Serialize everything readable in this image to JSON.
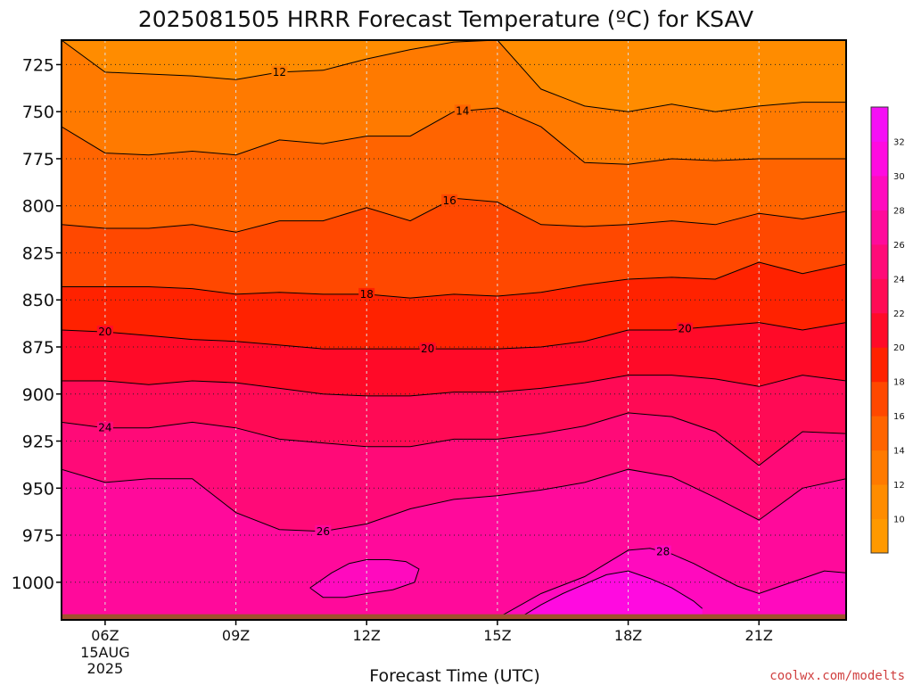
{
  "chart_data": {
    "type": "heatmap",
    "title": "2025081505 HRRR Forecast Temperature (ºC) for KSAV",
    "xlabel": "Forecast Time (UTC)",
    "ylabel": "",
    "credit": "coolwx.com/modelts",
    "x_range_hours_utc": [
      5,
      23
    ],
    "y_range_hpa": [
      712,
      1020
    ],
    "y_inverted": true,
    "y_ticks": [
      725,
      750,
      775,
      800,
      825,
      850,
      875,
      900,
      925,
      950,
      975,
      1000
    ],
    "y_tick_labels": [
      "725",
      "750",
      "775",
      "800",
      "825",
      "850",
      "875",
      "900",
      "925",
      "950",
      "975",
      "1000"
    ],
    "x_ticks": [
      6,
      9,
      12,
      15,
      18,
      21
    ],
    "x_tick_labels": [
      "06Z",
      "09Z",
      "12Z",
      "15Z",
      "18Z",
      "21Z"
    ],
    "x_date_label": [
      "15AUG",
      "2025"
    ],
    "grid": "dotted",
    "colorbar": {
      "position": "right",
      "min": 8,
      "max": 34,
      "step": 2,
      "tick_labels": [
        "10",
        "12",
        "14",
        "16",
        "18",
        "20",
        "22",
        "24",
        "26",
        "28",
        "30",
        "32"
      ],
      "colors": [
        "#ff9900",
        "#ff8c00",
        "#ff7a00",
        "#ff6400",
        "#ff4800",
        "#ff2200",
        "#ff0a28",
        "#ff0a55",
        "#ff0a78",
        "#ff0a9b",
        "#ff0abe",
        "#ff0ae0",
        "#f50ff5"
      ]
    },
    "contours": [
      {
        "level": 12,
        "label": "12",
        "hours": [
          5,
          6,
          7,
          8,
          9,
          10,
          11,
          12,
          13,
          14,
          15,
          16,
          17,
          18,
          19,
          20,
          21,
          22,
          23
        ],
        "pressure": [
          712,
          729,
          730,
          731,
          733,
          729,
          728,
          722,
          717,
          713,
          712,
          738,
          747,
          750,
          746,
          750,
          747,
          745,
          745
        ]
      },
      {
        "level": 14,
        "label": "14",
        "hours": [
          5,
          6,
          7,
          8,
          9,
          10,
          11,
          12,
          13,
          14,
          15,
          16,
          17,
          18,
          19,
          20,
          21,
          22,
          23
        ],
        "pressure": [
          758,
          772,
          773,
          771,
          773,
          765,
          767,
          763,
          763,
          750,
          748,
          758,
          777,
          778,
          775,
          776,
          775,
          775,
          775
        ]
      },
      {
        "level": 16,
        "label": "16",
        "hours": [
          5,
          6,
          7,
          8,
          9,
          10,
          11,
          12,
          13,
          14,
          15,
          16,
          17,
          18,
          19,
          20,
          21,
          22,
          23
        ],
        "pressure": [
          810,
          812,
          812,
          810,
          814,
          808,
          808,
          801,
          808,
          796,
          798,
          810,
          811,
          810,
          808,
          810,
          804,
          807,
          803
        ]
      },
      {
        "level": 18,
        "label": "18",
        "hours": [
          5,
          6,
          7,
          8,
          9,
          10,
          11,
          12,
          13,
          14,
          15,
          16,
          17,
          18,
          19,
          20,
          21,
          22,
          23
        ],
        "pressure": [
          843,
          843,
          843,
          844,
          847,
          846,
          847,
          847,
          849,
          847,
          848,
          846,
          842,
          839,
          838,
          839,
          830,
          836,
          831
        ]
      },
      {
        "level": 20,
        "label": "20",
        "hours": [
          5,
          6,
          7,
          8,
          9,
          10,
          11,
          12,
          13,
          14,
          15,
          16,
          17,
          18,
          19,
          20,
          21,
          22,
          23
        ],
        "pressure": [
          866,
          867,
          869,
          871,
          872,
          874,
          876,
          876,
          876,
          876,
          876,
          875,
          872,
          866,
          866,
          864,
          862,
          866,
          862
        ]
      },
      {
        "level": 22,
        "label": "",
        "hours": [
          5,
          6,
          7,
          8,
          9,
          10,
          11,
          12,
          13,
          14,
          15,
          16,
          17,
          18,
          19,
          20,
          21,
          22,
          23
        ],
        "pressure": [
          893,
          893,
          895,
          893,
          894,
          897,
          900,
          901,
          901,
          899,
          899,
          897,
          894,
          890,
          890,
          892,
          896,
          890,
          893
        ]
      },
      {
        "level": 24,
        "label": "24",
        "hours": [
          5,
          6,
          7,
          8,
          9,
          10,
          11,
          12,
          13,
          14,
          15,
          16,
          17,
          18,
          19,
          20,
          21,
          22,
          23
        ],
        "pressure": [
          915,
          918,
          918,
          915,
          918,
          924,
          926,
          928,
          928,
          924,
          924,
          921,
          917,
          910,
          912,
          920,
          938,
          920,
          921
        ]
      },
      {
        "level": 26,
        "label": "26",
        "hours": [
          5,
          6,
          7,
          8,
          9,
          10,
          11,
          12,
          13,
          14,
          15,
          16,
          17,
          18,
          19,
          20,
          21,
          22,
          23
        ],
        "pressure": [
          940,
          947,
          945,
          945,
          963,
          972,
          973,
          969,
          961,
          956,
          954,
          951,
          947,
          940,
          944,
          955,
          967,
          950,
          945
        ]
      },
      {
        "level": 28,
        "label": "28",
        "hours": [
          15,
          16,
          17,
          17.5,
          18,
          18.5,
          19,
          19.5,
          20,
          20.5,
          21,
          21.5,
          22,
          22.5,
          23
        ],
        "pressure": [
          1019,
          1006,
          997,
          990,
          983,
          982,
          985,
          990,
          996,
          1002,
          1006,
          1002,
          998,
          994,
          995
        ]
      },
      {
        "level": 28,
        "label": "",
        "hours": [
          10.7,
          11.2,
          11.6,
          12,
          12.5,
          12.9,
          13.2,
          13.1,
          12.6,
          12,
          11.5,
          11,
          10.7
        ],
        "pressure": [
          1003,
          995,
          990,
          988,
          988,
          989,
          993,
          1000,
          1004,
          1006,
          1008,
          1008,
          1003
        ]
      },
      {
        "level": 30,
        "label": "",
        "hours": [
          15.5,
          16,
          16.5,
          17,
          17.5,
          18,
          18.5,
          19,
          19.5,
          19.7
        ],
        "pressure": [
          1019,
          1012,
          1006,
          1001,
          996,
          994,
          998,
          1003,
          1010,
          1014
        ]
      }
    ],
    "surface": {
      "label": "",
      "pressure_hpa": 1017,
      "color": "#a0522d"
    }
  }
}
